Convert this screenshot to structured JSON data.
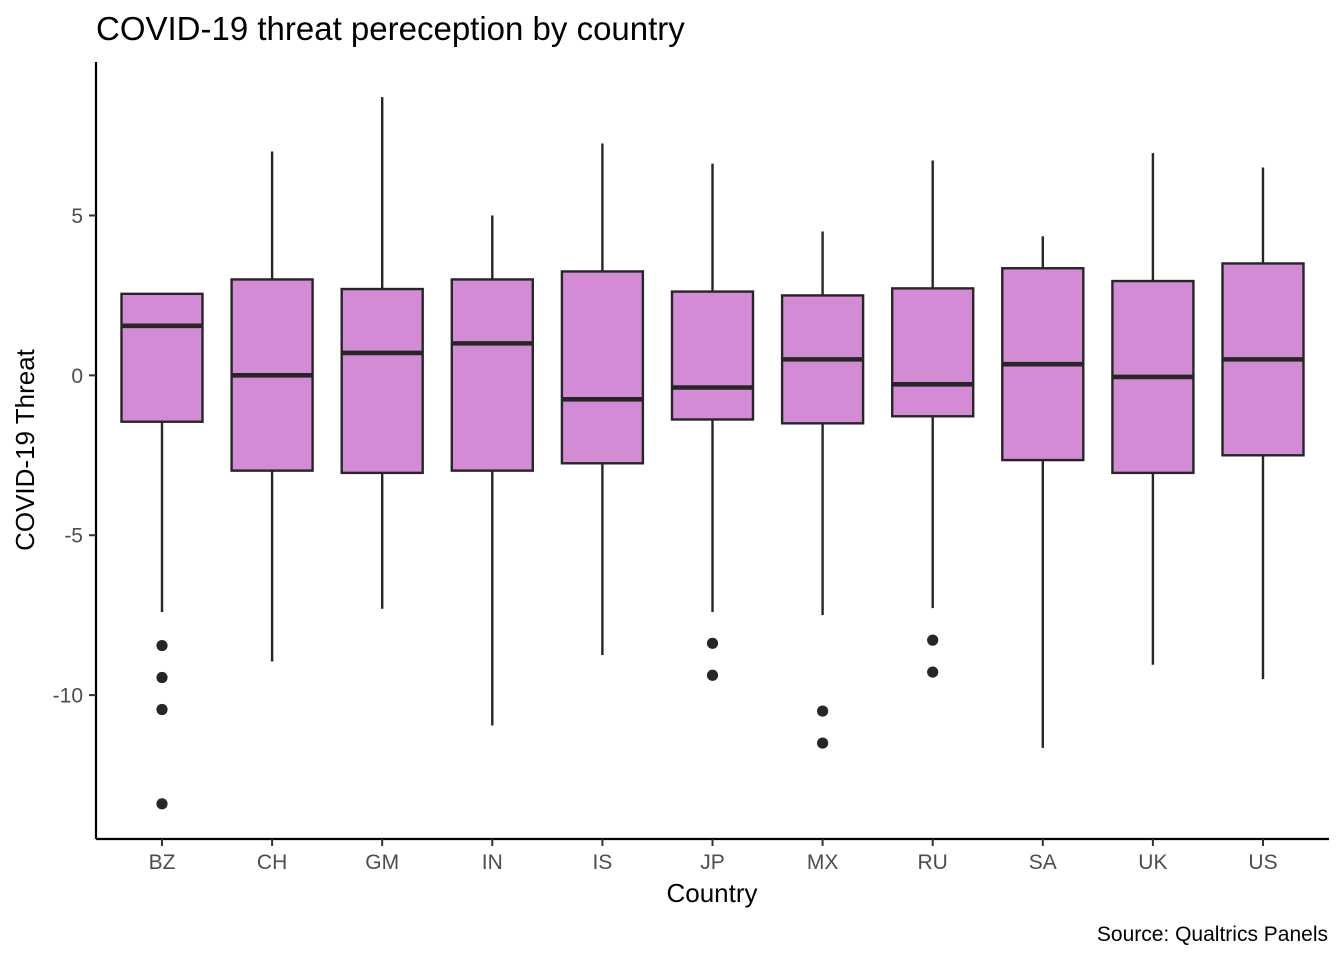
{
  "chart_data": {
    "type": "boxplot",
    "title": "COVID-19 threat pereception by country",
    "xlabel": "Country",
    "ylabel": "COVID-19 Threat",
    "caption": "Source: Qualtrics Panels",
    "categories": [
      "BZ",
      "CH",
      "GM",
      "IN",
      "IS",
      "JP",
      "MX",
      "RU",
      "SA",
      "UK",
      "US"
    ],
    "ylim": [
      -14.5,
      9.8
    ],
    "yticks": [
      5,
      0,
      -5,
      -10
    ],
    "ytick_labels": [
      "5",
      "0",
      "-5",
      "-10"
    ],
    "grid": false,
    "legend": "none",
    "boxes": [
      {
        "category": "BZ",
        "whisker_low": -7.4,
        "q1": -1.45,
        "median": 1.55,
        "q3": 2.55,
        "whisker_high": 2.55,
        "outliers": [
          -8.45,
          -9.45,
          -10.45,
          -13.4
        ]
      },
      {
        "category": "CH",
        "whisker_low": -8.95,
        "q1": -2.98,
        "median": 0.0,
        "q3": 3.0,
        "whisker_high": 7.0,
        "outliers": []
      },
      {
        "category": "GM",
        "whisker_low": -7.3,
        "q1": -3.05,
        "median": 0.7,
        "q3": 2.7,
        "whisker_high": 8.7,
        "outliers": []
      },
      {
        "category": "IN",
        "whisker_low": -10.95,
        "q1": -2.98,
        "median": 1.0,
        "q3": 3.0,
        "whisker_high": 5.0,
        "outliers": []
      },
      {
        "category": "IS",
        "whisker_low": -8.75,
        "q1": -2.75,
        "median": -0.75,
        "q3": 3.25,
        "whisker_high": 7.25,
        "outliers": []
      },
      {
        "category": "JP",
        "whisker_low": -7.4,
        "q1": -1.38,
        "median": -0.38,
        "q3": 2.62,
        "whisker_high": 6.62,
        "outliers": [
          -8.38,
          -9.38
        ]
      },
      {
        "category": "MX",
        "whisker_low": -7.5,
        "q1": -1.5,
        "median": 0.5,
        "q3": 2.5,
        "whisker_high": 4.5,
        "outliers": [
          -10.5,
          -11.5
        ]
      },
      {
        "category": "RU",
        "whisker_low": -7.28,
        "q1": -1.28,
        "median": -0.28,
        "q3": 2.72,
        "whisker_high": 6.72,
        "outliers": [
          -8.28,
          -9.28
        ]
      },
      {
        "category": "SA",
        "whisker_low": -11.65,
        "q1": -2.65,
        "median": 0.35,
        "q3": 3.35,
        "whisker_high": 4.35,
        "outliers": []
      },
      {
        "category": "UK",
        "whisker_low": -9.05,
        "q1": -3.05,
        "median": -0.05,
        "q3": 2.95,
        "whisker_high": 6.95,
        "outliers": []
      },
      {
        "category": "US",
        "whisker_low": -9.5,
        "q1": -2.5,
        "median": 0.5,
        "q3": 3.5,
        "whisker_high": 6.5,
        "outliers": []
      }
    ],
    "colors": {
      "box_fill": "#d38bd5",
      "box_stroke": "#262626",
      "median": "#262626",
      "whisker": "#262626",
      "outlier": "#262626",
      "axis": "#000000",
      "tick_text": "#4d4d4d"
    }
  }
}
